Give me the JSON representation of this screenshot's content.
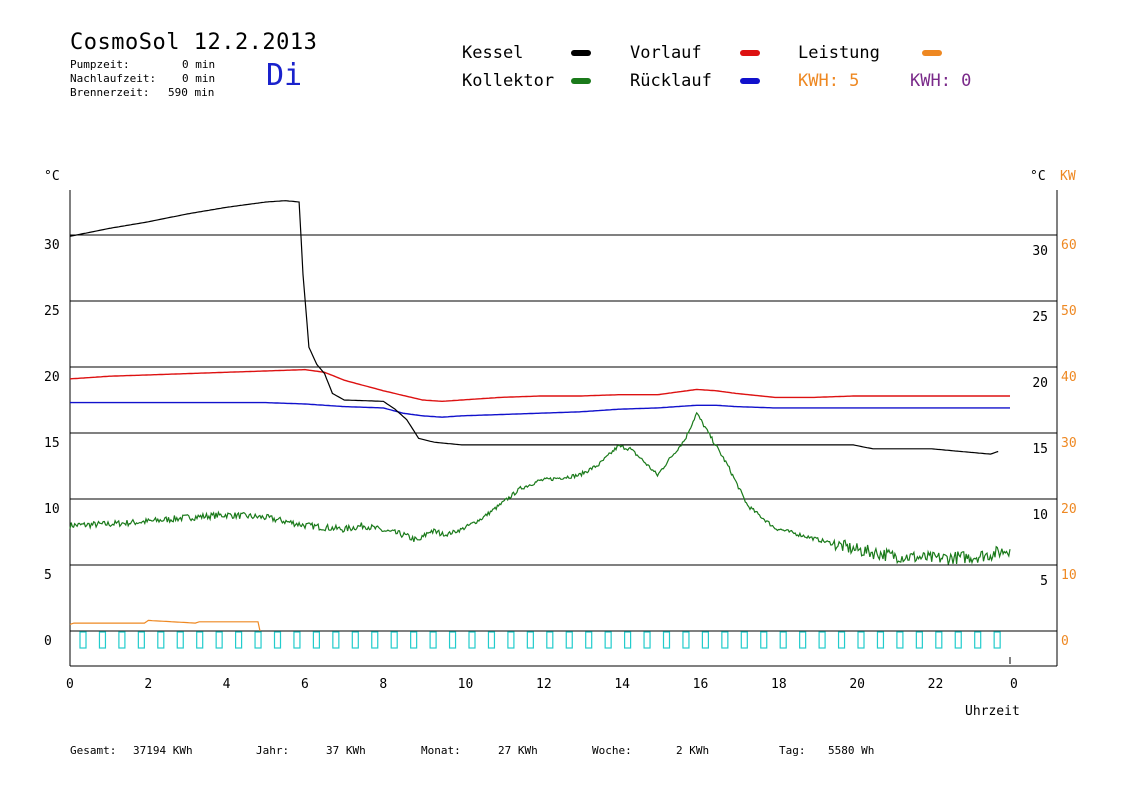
{
  "header": {
    "title": "CosmoSol 12.2.2013",
    "day": "Di",
    "pumpzeit_label": "Pumpzeit:",
    "pumpzeit_value": "0 min",
    "nachlauf_label": "Nachlaufzeit:",
    "nachlauf_value": "0 min",
    "brenner_label": "Brennerzeit:",
    "brenner_value": "590 min"
  },
  "legend": {
    "kessel": {
      "label": "Kessel",
      "color": "#000000"
    },
    "kollektor": {
      "label": "Kollektor",
      "color": "#1a7a1a"
    },
    "vorlauf": {
      "label": "Vorlauf",
      "color": "#dd1111"
    },
    "ruecklauf": {
      "label": "Rücklauf",
      "color": "#1111cc"
    },
    "leistung": {
      "label": "Leistung",
      "color": "#ee8822"
    },
    "kwh_orange": "KWH: 5",
    "kwh_purple": "KWH: 0"
  },
  "footer": {
    "gesamt_label": "Gesamt:",
    "gesamt_value": "37194 KWh",
    "jahr_label": "Jahr:",
    "jahr_value": "37 KWh",
    "monat_label": "Monat:",
    "monat_value": "27 KWh",
    "woche_label": "Woche:",
    "woche_value": "2 KWh",
    "tag_label": "Tag:",
    "tag_value": "5580 Wh"
  },
  "chart_data": {
    "type": "line",
    "left_unit": "°C",
    "right_unit": "°C",
    "right_unit2": "KW",
    "xlabel": "Uhrzeit",
    "x_ticks": [
      "0",
      "2",
      "4",
      "6",
      "8",
      "10",
      "12",
      "14",
      "16",
      "18",
      "20",
      "22",
      "0"
    ],
    "y_left_ticks": [
      "0",
      "5",
      "10",
      "15",
      "20",
      "25",
      "30"
    ],
    "y_right_ticks": [
      "5",
      "10",
      "15",
      "20",
      "25",
      "30"
    ],
    "y_kw_ticks": [
      "0",
      "10",
      "20",
      "30",
      "40",
      "50",
      "60"
    ],
    "xlim": [
      0,
      24
    ],
    "ylim": [
      -2.5,
      33.5
    ],
    "gridlines_y": [
      0,
      5,
      10,
      15,
      20,
      25,
      30
    ],
    "series": [
      {
        "name": "Kessel",
        "color": "#000000",
        "x": [
          0,
          1,
          2,
          3,
          4,
          5,
          5.5,
          5.85,
          5.95,
          6.1,
          6.3,
          6.5,
          6.7,
          7.0,
          8.0,
          8.3,
          8.6,
          8.9,
          9.3,
          10,
          12,
          14,
          16,
          18,
          20,
          20.5,
          22,
          23.5,
          23.7
        ],
        "y": [
          29.9,
          30.5,
          31.0,
          31.6,
          32.1,
          32.5,
          32.6,
          32.5,
          27,
          21.5,
          20.2,
          19.5,
          18.0,
          17.5,
          17.4,
          16.8,
          16.0,
          14.6,
          14.3,
          14.1,
          14.1,
          14.1,
          14.1,
          14.1,
          14.1,
          13.8,
          13.8,
          13.4,
          13.6
        ]
      },
      {
        "name": "Vorlauf",
        "color": "#dd1111",
        "x": [
          0,
          1,
          2,
          3,
          4,
          5,
          6,
          6.5,
          7,
          8,
          9,
          9.5,
          10,
          11,
          12,
          13,
          14,
          15,
          16,
          16.5,
          17,
          18,
          19,
          20,
          21,
          22,
          23,
          24
        ],
        "y": [
          19.1,
          19.3,
          19.4,
          19.5,
          19.6,
          19.7,
          19.8,
          19.6,
          19.0,
          18.2,
          17.5,
          17.4,
          17.5,
          17.7,
          17.8,
          17.8,
          17.9,
          17.9,
          18.3,
          18.2,
          18.0,
          17.7,
          17.7,
          17.8,
          17.8,
          17.8,
          17.8,
          17.8
        ]
      },
      {
        "name": "Rücklauf",
        "color": "#1111cc",
        "x": [
          0,
          1,
          2,
          3,
          4,
          5,
          6,
          7,
          8,
          8.5,
          9,
          9.5,
          10,
          11,
          12,
          13,
          14,
          15,
          16,
          16.5,
          17,
          18,
          19,
          20,
          21,
          22,
          23,
          24
        ],
        "y": [
          17.3,
          17.3,
          17.3,
          17.3,
          17.3,
          17.3,
          17.2,
          17.0,
          16.9,
          16.5,
          16.3,
          16.2,
          16.3,
          16.4,
          16.5,
          16.6,
          16.8,
          16.9,
          17.1,
          17.1,
          17.0,
          16.9,
          16.9,
          16.9,
          16.9,
          16.9,
          16.9,
          16.9
        ]
      },
      {
        "name": "Kollektor",
        "color": "#1a7a1a",
        "x": [
          0,
          1,
          2,
          3,
          4,
          5,
          6,
          7,
          7.5,
          8,
          8.5,
          8.9,
          9.2,
          9.6,
          10,
          10.5,
          11,
          11.5,
          12,
          12.5,
          13,
          13.5,
          14,
          14.3,
          14.6,
          15.0,
          15.3,
          15.7,
          16.0,
          16.3,
          16.8,
          17.3,
          18,
          19,
          20,
          21,
          22,
          23,
          23.5,
          24
        ],
        "y": [
          8.0,
          8.1,
          8.3,
          8.6,
          8.8,
          8.6,
          8.0,
          7.7,
          8.0,
          7.6,
          7.3,
          6.8,
          7.6,
          7.3,
          7.7,
          8.5,
          9.6,
          10.8,
          11.4,
          11.6,
          11.8,
          12.6,
          14.0,
          13.8,
          13.0,
          11.8,
          13.0,
          14.5,
          16.5,
          15.0,
          12.5,
          9.5,
          7.8,
          7.0,
          6.2,
          5.7,
          5.5,
          5.6,
          5.8,
          6.2
        ]
      },
      {
        "name": "Leistung",
        "color": "#ee8822",
        "x": [
          0,
          0.1,
          1.9,
          2.0,
          3.2,
          3.3,
          4.8,
          4.85
        ],
        "y": [
          0.5,
          0.6,
          0.6,
          0.8,
          0.6,
          0.7,
          0.7,
          0.0
        ]
      }
    ],
    "pump_markers": {
      "color": "#22cccc",
      "count": 48
    }
  }
}
